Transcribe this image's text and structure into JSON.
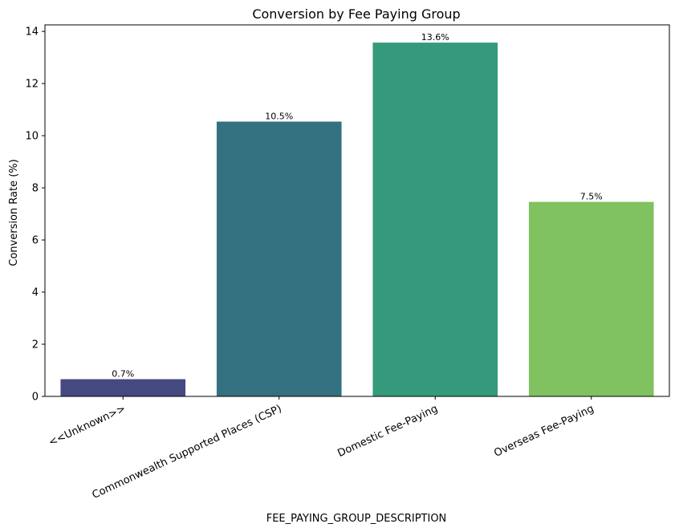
{
  "chart_data": {
    "type": "bar",
    "title": "Conversion by Fee Paying Group",
    "xlabel": "FEE_PAYING_GROUP_DESCRIPTION",
    "ylabel": "Conversion Rate (%)",
    "ylim": [
      0,
      14.25
    ],
    "yticks": [
      "0",
      "2",
      "4",
      "6",
      "8",
      "10",
      "12",
      "14"
    ],
    "grid": false,
    "categories": [
      "<<Unknown>>",
      "Commonwealth Supported Places (CSP)",
      "Domestic Fee-Paying",
      "Overseas Fee-Paying"
    ],
    "values": [
      0.66,
      10.54,
      13.57,
      7.46
    ],
    "data_labels": [
      "0.7%",
      "10.5%",
      "13.6%",
      "7.5%"
    ],
    "colors": [
      "#46497f",
      "#347180",
      "#359a7b",
      "#80c160"
    ]
  }
}
